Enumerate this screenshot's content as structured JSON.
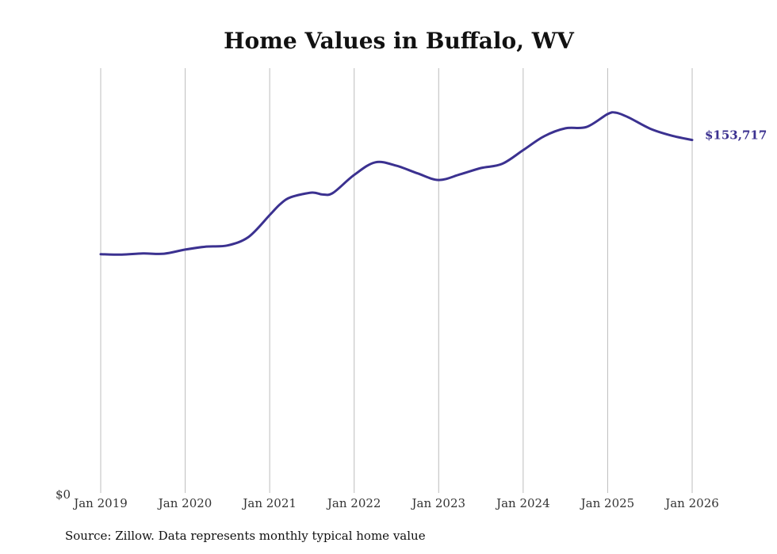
{
  "colors": {
    "line": "#3b3190",
    "grid": "#bdbdbd",
    "text": "#111111"
  },
  "source_text": "Source: Zillow. Data represents monthly typical home value",
  "chart_data": {
    "type": "line",
    "title": "Home Values in Buffalo, WV",
    "xlabel": "",
    "ylabel": "",
    "grid": "vertical",
    "y_zero_label": "$0",
    "ylim": [
      0,
      185000
    ],
    "xlim": [
      2019.0,
      2026.0
    ],
    "x_ticks": [
      2019,
      2020,
      2021,
      2022,
      2023,
      2024,
      2025,
      2026
    ],
    "tick_labels": [
      "Jan 2019",
      "Jan 2020",
      "Jan 2021",
      "Jan 2022",
      "Jan 2023",
      "Jan 2024",
      "Jan 2025",
      "Jan 2026"
    ],
    "end_label": "$153,717",
    "series": [
      {
        "name": "Home value",
        "x": [
          2019.0,
          2019.25,
          2019.5,
          2019.75,
          2020.0,
          2020.25,
          2020.5,
          2020.75,
          2021.0,
          2021.125,
          2021.25,
          2021.5,
          2021.625,
          2021.75,
          2022.0,
          2022.25,
          2022.5,
          2022.75,
          2023.0,
          2023.25,
          2023.5,
          2023.75,
          2024.0,
          2024.25,
          2024.5,
          2024.75,
          2025.0,
          2025.1,
          2025.25,
          2025.5,
          2025.75,
          2026.0
        ],
        "values": [
          104000,
          103800,
          104300,
          104200,
          106000,
          107300,
          107800,
          111500,
          121000,
          125800,
          128800,
          130800,
          130000,
          130700,
          138500,
          144000,
          142500,
          139200,
          136300,
          138700,
          141500,
          143300,
          149300,
          155400,
          158800,
          159400,
          165000,
          165600,
          163500,
          158700,
          155700,
          153717
        ]
      }
    ]
  }
}
